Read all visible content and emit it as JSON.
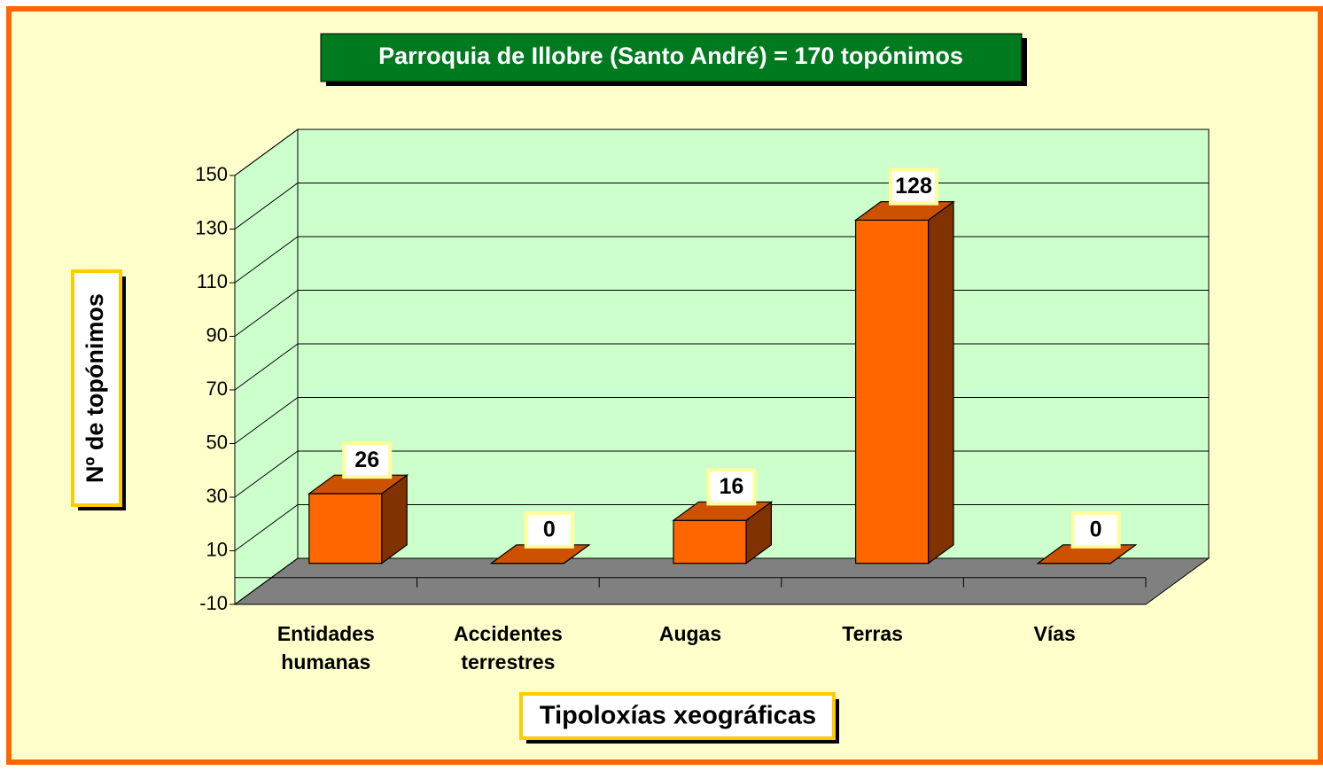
{
  "chart_data": {
    "type": "bar3d",
    "title": "Parroquia de Illobre (Santo André) = 170 topónimos",
    "y_label": "Nº de topónimos",
    "x_label": "Tipoloxías xeográficas",
    "categories": [
      "Entidades humanas",
      "Accidentes terrestres",
      "Augas",
      "Terras",
      "Vías"
    ],
    "values": [
      26,
      0,
      16,
      128,
      0
    ],
    "color": "#ff6600",
    "ylim": [
      -10,
      150
    ],
    "yticks": [
      -10,
      10,
      30,
      50,
      70,
      90,
      110,
      130,
      150
    ],
    "grid": true
  }
}
